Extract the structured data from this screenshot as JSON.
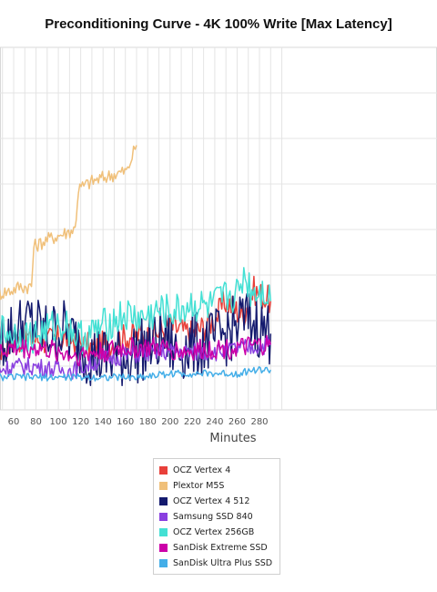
{
  "chart_data": {
    "type": "line",
    "title": "Preconditioning Curve - 4K 100% Write [Max Latency]",
    "xlabel": "Minutes",
    "ylabel": "",
    "x_ticks": [
      60,
      80,
      100,
      120,
      140,
      160,
      180,
      200,
      220,
      240,
      260,
      280
    ],
    "grid": true,
    "legend_position": "bottom-center",
    "series": [
      {
        "name": "OCZ Vertex 4",
        "color": "#e8403a",
        "points": [
          [
            30,
            0.18
          ],
          [
            50,
            0.17
          ],
          [
            70,
            0.2
          ],
          [
            90,
            0.19
          ],
          [
            110,
            0.2
          ],
          [
            130,
            0.17
          ],
          [
            150,
            0.19
          ],
          [
            170,
            0.21
          ],
          [
            180,
            0.2
          ],
          [
            200,
            0.23
          ],
          [
            220,
            0.21
          ],
          [
            240,
            0.25
          ],
          [
            250,
            0.3
          ],
          [
            265,
            0.26
          ],
          [
            275,
            0.33
          ],
          [
            285,
            0.31
          ],
          [
            290,
            0.3
          ]
        ]
      },
      {
        "name": "Plextor M5S",
        "color": "#f0c07a",
        "points": [
          [
            45,
            0.32
          ],
          [
            58,
            0.33
          ],
          [
            65,
            0.34
          ],
          [
            76,
            0.34
          ],
          [
            78,
            0.45
          ],
          [
            90,
            0.47
          ],
          [
            108,
            0.49
          ],
          [
            115,
            0.5
          ],
          [
            118,
            0.61
          ],
          [
            130,
            0.63
          ],
          [
            150,
            0.65
          ],
          [
            162,
            0.66
          ],
          [
            166,
            0.7
          ],
          [
            170,
            0.73
          ]
        ]
      },
      {
        "name": "OCZ Vertex 4 512",
        "color": "#141a6e",
        "points": [
          [
            30,
            0.2
          ],
          [
            45,
            0.18
          ],
          [
            60,
            0.22
          ],
          [
            75,
            0.24
          ],
          [
            90,
            0.21
          ],
          [
            105,
            0.22
          ],
          [
            118,
            0.18
          ],
          [
            130,
            0.15
          ],
          [
            150,
            0.14
          ],
          [
            170,
            0.16
          ],
          [
            185,
            0.18
          ],
          [
            195,
            0.2
          ],
          [
            205,
            0.16
          ],
          [
            220,
            0.18
          ],
          [
            240,
            0.19
          ],
          [
            255,
            0.22
          ],
          [
            265,
            0.25
          ],
          [
            275,
            0.24
          ],
          [
            290,
            0.21
          ]
        ]
      },
      {
        "name": "Samsung SSD 840",
        "color": "#8a3fe0",
        "points": [
          [
            30,
            0.12
          ],
          [
            45,
            0.11
          ],
          [
            60,
            0.12
          ],
          [
            80,
            0.12
          ],
          [
            100,
            0.11
          ],
          [
            115,
            0.11
          ],
          [
            140,
            0.14
          ],
          [
            160,
            0.15
          ],
          [
            190,
            0.16
          ],
          [
            215,
            0.16
          ],
          [
            240,
            0.16
          ],
          [
            265,
            0.17
          ],
          [
            290,
            0.18
          ]
        ]
      },
      {
        "name": "OCZ Vertex 256GB",
        "color": "#44e0d4",
        "points": [
          [
            30,
            0.27
          ],
          [
            45,
            0.22
          ],
          [
            60,
            0.21
          ],
          [
            75,
            0.2
          ],
          [
            90,
            0.22
          ],
          [
            105,
            0.24
          ],
          [
            118,
            0.2
          ],
          [
            130,
            0.21
          ],
          [
            145,
            0.24
          ],
          [
            160,
            0.26
          ],
          [
            175,
            0.25
          ],
          [
            190,
            0.27
          ],
          [
            205,
            0.27
          ],
          [
            220,
            0.29
          ],
          [
            235,
            0.28
          ],
          [
            250,
            0.31
          ],
          [
            262,
            0.32
          ],
          [
            266,
            0.38
          ],
          [
            272,
            0.33
          ],
          [
            285,
            0.33
          ],
          [
            290,
            0.3
          ]
        ]
      },
      {
        "name": "SanDisk Extreme SSD",
        "color": "#cc00a8",
        "points": [
          [
            30,
            0.17
          ],
          [
            45,
            0.16
          ],
          [
            60,
            0.17
          ],
          [
            80,
            0.17
          ],
          [
            100,
            0.16
          ],
          [
            115,
            0.15
          ],
          [
            140,
            0.16
          ],
          [
            160,
            0.17
          ],
          [
            190,
            0.17
          ],
          [
            215,
            0.16
          ],
          [
            240,
            0.17
          ],
          [
            265,
            0.17
          ],
          [
            290,
            0.18
          ]
        ]
      },
      {
        "name": "SanDisk Ultra Plus SSD",
        "color": "#44aee8",
        "points": [
          [
            30,
            0.09
          ],
          [
            60,
            0.09
          ],
          [
            90,
            0.09
          ],
          [
            115,
            0.09
          ],
          [
            140,
            0.09
          ],
          [
            170,
            0.09
          ],
          [
            200,
            0.1
          ],
          [
            230,
            0.1
          ],
          [
            260,
            0.1
          ],
          [
            275,
            0.11
          ],
          [
            290,
            0.11
          ]
        ]
      }
    ]
  }
}
